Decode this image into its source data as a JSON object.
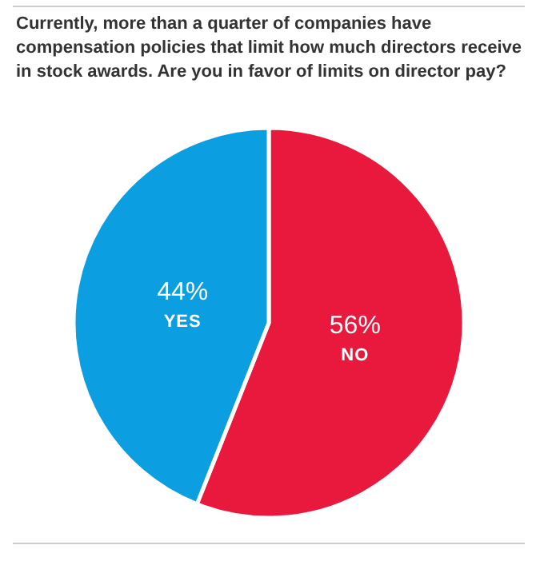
{
  "chart_data": {
    "type": "pie",
    "title": "Currently, more than a quarter of companies have compensation policies that limit how much directors receive in stock awards. Are you in favor of limits on director pay?",
    "categories": [
      "NO",
      "YES"
    ],
    "values": [
      56,
      44
    ],
    "colors": [
      "#e8193c",
      "#0b9ee0"
    ],
    "value_labels": [
      "56%",
      "44%"
    ]
  }
}
